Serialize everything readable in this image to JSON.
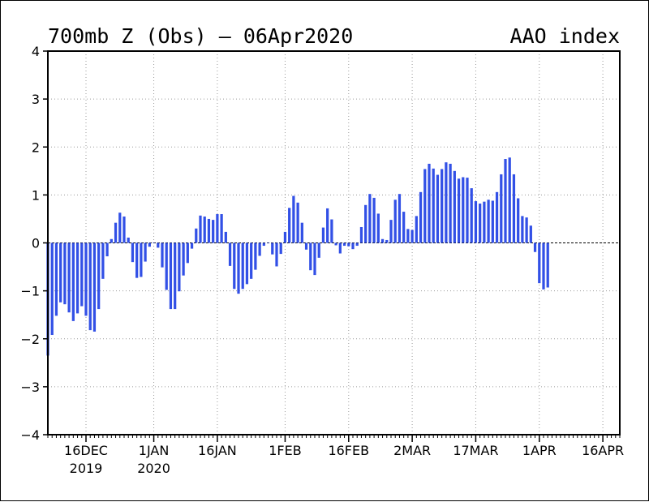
{
  "chart_data": {
    "type": "bar",
    "title": "700mb Z (Obs) – 06Apr2020",
    "index_label": "AAO index",
    "ylim": [
      -4,
      4
    ],
    "y_ticks": [
      -4,
      -3,
      -2,
      -1,
      0,
      1,
      2,
      3,
      4
    ],
    "y_tick_labels": [
      "−4",
      "−3",
      "−2",
      "−1",
      "0",
      "1",
      "2",
      "3",
      "4"
    ],
    "x_range": [
      "2019-12-07",
      "2020-04-20"
    ],
    "x_ticks": [
      {
        "date": "2019-12-16",
        "label": "16DEC",
        "sublabel": "2019"
      },
      {
        "date": "2020-01-01",
        "label": "1JAN",
        "sublabel": "2020"
      },
      {
        "date": "2020-01-16",
        "label": "16JAN",
        "sublabel": ""
      },
      {
        "date": "2020-02-01",
        "label": "1FEB",
        "sublabel": ""
      },
      {
        "date": "2020-02-16",
        "label": "16FEB",
        "sublabel": ""
      },
      {
        "date": "2020-03-02",
        "label": "2MAR",
        "sublabel": ""
      },
      {
        "date": "2020-03-17",
        "label": "17MAR",
        "sublabel": ""
      },
      {
        "date": "2020-04-01",
        "label": "1APR",
        "sublabel": ""
      },
      {
        "date": "2020-04-16",
        "label": "16APR",
        "sublabel": ""
      }
    ],
    "grid": true,
    "bar_color": "#3250e6",
    "start_date": "2019-12-07",
    "values": [
      -2.35,
      -1.92,
      -1.52,
      -1.24,
      -1.28,
      -1.45,
      -1.63,
      -1.47,
      -1.32,
      -1.52,
      -1.82,
      -1.85,
      -1.38,
      -0.75,
      -0.28,
      0.08,
      0.42,
      0.63,
      0.55,
      0.11,
      -0.4,
      -0.73,
      -0.71,
      -0.39,
      -0.08,
      0.0,
      -0.1,
      -0.51,
      -0.98,
      -1.38,
      -1.38,
      -1.01,
      -0.68,
      -0.42,
      -0.12,
      0.3,
      0.57,
      0.55,
      0.5,
      0.48,
      0.6,
      0.6,
      0.23,
      -0.48,
      -0.96,
      -1.06,
      -0.96,
      -0.86,
      -0.75,
      -0.56,
      -0.27,
      -0.06,
      0.0,
      -0.24,
      -0.49,
      -0.23,
      0.23,
      0.73,
      0.98,
      0.84,
      0.42,
      -0.14,
      -0.57,
      -0.67,
      -0.31,
      0.32,
      0.72,
      0.49,
      -0.05,
      -0.22,
      -0.06,
      -0.07,
      -0.13,
      -0.06,
      0.33,
      0.79,
      1.02,
      0.94,
      0.61,
      0.08,
      0.06,
      0.48,
      0.9,
      1.02,
      0.65,
      0.29,
      0.27,
      0.56,
      1.06,
      1.54,
      1.65,
      1.55,
      1.42,
      1.54,
      1.68,
      1.65,
      1.5,
      1.34,
      1.37,
      1.36,
      1.14,
      0.87,
      0.82,
      0.86,
      0.9,
      0.88,
      1.06,
      1.43,
      1.75,
      1.78,
      1.43,
      0.93,
      0.56,
      0.53,
      0.36,
      -0.19,
      -0.84,
      -0.97,
      -0.93
    ]
  }
}
